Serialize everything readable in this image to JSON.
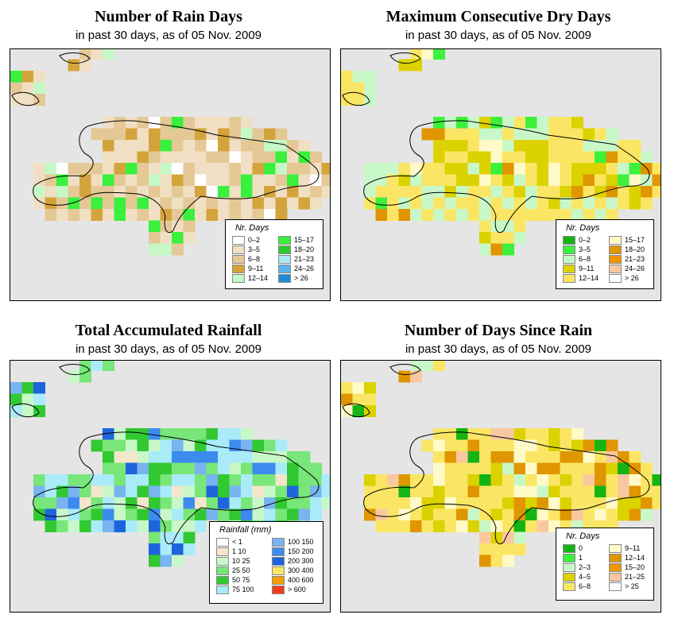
{
  "panels": [
    {
      "title": "Number of Rain Days",
      "subtitle": "in past 30 days, as of  05 Nov. 2009",
      "legend": {
        "title": "Nr. Days",
        "items": [
          {
            "label": "0–2",
            "color": "#ffffff"
          },
          {
            "label": "3–5",
            "color": "#f1dfc3"
          },
          {
            "label": "6–8",
            "color": "#e4c896"
          },
          {
            "label": "9–11",
            "color": "#d4a43c"
          },
          {
            "label": "12–14",
            "color": "#c6f8c6"
          },
          {
            "label": "15–17",
            "color": "#39f03c"
          },
          {
            "label": "18–20",
            "color": "#2dc82d"
          },
          {
            "label": "21–23",
            "color": "#aaebfa"
          },
          {
            "label": "24–26",
            "color": "#5ab4f0"
          },
          {
            "label": "> 26",
            "color": "#1e8cd2"
          }
        ]
      }
    },
    {
      "title": "Maximum Consecutive Dry Days",
      "subtitle": "in past 30 days, as of  05 Nov. 2009",
      "legend": {
        "title": "Nr. Days",
        "items": [
          {
            "label": "0–2",
            "color": "#14b414"
          },
          {
            "label": "3–5",
            "color": "#3cf03c"
          },
          {
            "label": "6–8",
            "color": "#c8f8c8"
          },
          {
            "label": "9–11",
            "color": "#dcd200"
          },
          {
            "label": "12–14",
            "color": "#fae664"
          },
          {
            "label": "15–17",
            "color": "#fffac8"
          },
          {
            "label": "18–20",
            "color": "#e09600"
          },
          {
            "label": "21–23",
            "color": "#f09600"
          },
          {
            "label": "24–26",
            "color": "#fac8a0"
          },
          {
            "label": "> 26",
            "color": "#ffffff"
          }
        ]
      }
    },
    {
      "title": "Total Accumulated Rainfall",
      "subtitle": "in past 30 days, as of  05 Nov. 2009",
      "legend": {
        "title": "Rainfall (mm)",
        "items": [
          {
            "label": "< 1",
            "color": "#ffffff"
          },
          {
            "label": "1    10",
            "color": "#f4e6cc"
          },
          {
            "label": "10    25",
            "color": "#c8f8c8"
          },
          {
            "label": "25    50",
            "color": "#78e678"
          },
          {
            "label": "50    75",
            "color": "#32c832"
          },
          {
            "label": "75   100",
            "color": "#aaebfa"
          },
          {
            "label": "100   150",
            "color": "#78b4f0"
          },
          {
            "label": "150   200",
            "color": "#3c8cf0"
          },
          {
            "label": "200   300",
            "color": "#1e64dc"
          },
          {
            "label": "300   400",
            "color": "#fae664"
          },
          {
            "label": "400   600",
            "color": "#f0a000"
          },
          {
            "label": "> 600",
            "color": "#f03c1e"
          }
        ]
      }
    },
    {
      "title": "Number of Days Since Rain",
      "subtitle": "in past 30 days, as of  05 Nov. 2009",
      "legend": {
        "title": "Nr. Days",
        "items": [
          {
            "label": "0",
            "color": "#14b414"
          },
          {
            "label": "1",
            "color": "#3cf03c"
          },
          {
            "label": "2–3",
            "color": "#c8f8c8"
          },
          {
            "label": "4–5",
            "color": "#dcd200"
          },
          {
            "label": "6–8",
            "color": "#fae664"
          },
          {
            "label": "9–11",
            "color": "#fffac8"
          },
          {
            "label": "12–14",
            "color": "#e09600"
          },
          {
            "label": "15–20",
            "color": "#f09600"
          },
          {
            "label": "21–25",
            "color": "#fac8a0"
          },
          {
            "label": "> 25",
            "color": "#ffffff"
          }
        ]
      }
    }
  ]
}
